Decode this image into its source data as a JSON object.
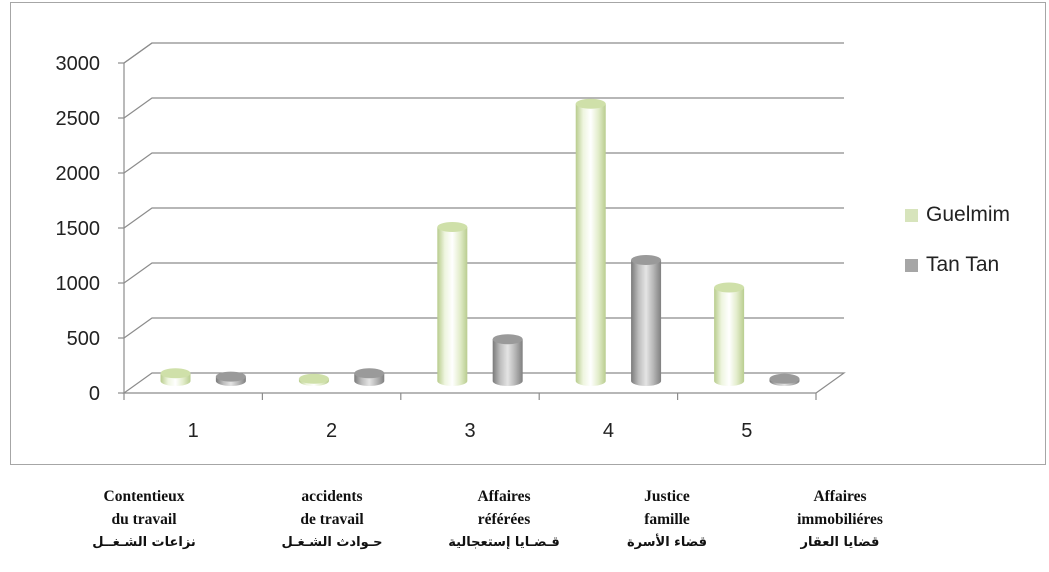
{
  "chart_data": {
    "type": "bar",
    "variant": "3d-cylinder",
    "categories": [
      "1",
      "2",
      "3",
      "4",
      "5"
    ],
    "series": [
      {
        "name": "Guelmim",
        "color": "#d7e4bc",
        "values": [
          70,
          20,
          1400,
          2520,
          850
        ]
      },
      {
        "name": "Tan Tan",
        "color": "#a6a6a6",
        "values": [
          40,
          70,
          380,
          1100,
          20
        ]
      }
    ],
    "y_ticks": [
      "0",
      "500",
      "1000",
      "1500",
      "2000",
      "2500",
      "3000"
    ],
    "ylim": [
      0,
      3000
    ],
    "grid": true,
    "legend_position": "right"
  },
  "captions": [
    {
      "line1": "Contentieux",
      "line2": "du travail",
      "arabic": "نزاعات الشـغــل"
    },
    {
      "line1": "accidents",
      "line2": "de travail",
      "arabic": "حـوادث الشـغـل"
    },
    {
      "line1": "Affaires",
      "line2": "référées",
      "arabic": "قـضـايا إستعجالية"
    },
    {
      "line1": "Justice",
      "line2": "famille",
      "arabic": "قضاء الأسرة"
    },
    {
      "line1": "Affaires",
      "line2": "immobiliéres",
      "arabic": "قضايا العقار"
    }
  ]
}
